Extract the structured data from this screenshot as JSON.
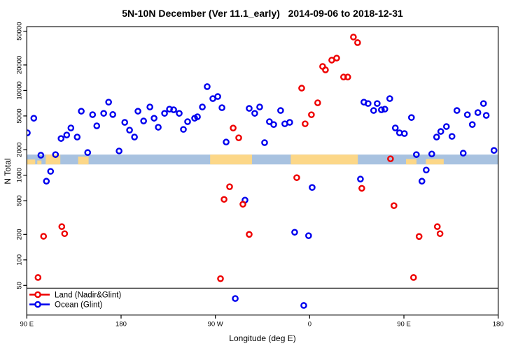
{
  "chart_data": {
    "type": "scatter",
    "title": "5N-10N December (Ver 11.1_early)   2014-09-06 to 2018-12-31",
    "xlabel": "Longitude (deg E)",
    "ylabel": "N Total",
    "x_axis": {
      "range_deg": [
        90,
        540
      ],
      "ticks": [
        {
          "deg": 90,
          "label": "90 E"
        },
        {
          "deg": 180,
          "label": "180"
        },
        {
          "deg": 270,
          "label": "90 W"
        },
        {
          "deg": 360,
          "label": "0"
        },
        {
          "deg": 450,
          "label": "90 E"
        },
        {
          "deg": 540,
          "label": "180"
        }
      ]
    },
    "y_axis": {
      "scale": "log10",
      "range": [
        22,
        57000
      ],
      "ticks": [
        50,
        100,
        200,
        500,
        1000,
        2000,
        5000,
        10000,
        20000,
        50000
      ]
    },
    "grid": "off",
    "legend": {
      "position": "bottom-left-inside",
      "separator_line": true
    },
    "map_strip": {
      "description": "world coastline band at 5N-10N drawn across plot",
      "n_top": 1750,
      "n_bottom": 1340,
      "ocean_color": "#a8c2e0",
      "land_color": "#fcd788",
      "land_patches_deg": [
        {
          "from": 90,
          "to": 98,
          "frac": 0.5
        },
        {
          "from": 100,
          "to": 104,
          "frac": 0.4
        },
        {
          "from": 108,
          "to": 122,
          "frac": 1
        },
        {
          "from": 139,
          "to": 149,
          "frac": 0.8
        },
        {
          "from": 265,
          "to": 305,
          "frac": 1
        },
        {
          "from": 342,
          "to": 406,
          "frac": 1
        },
        {
          "from": 452,
          "to": 462,
          "frac": 0.55
        },
        {
          "from": 471,
          "to": 488,
          "frac": 0.55
        }
      ]
    },
    "series": [
      {
        "name": "Land (Nadir&Glint)",
        "color": "#ee0000",
        "points": [
          [
            100.7,
            62
          ],
          [
            106,
            190
          ],
          [
            123.4,
            247
          ],
          [
            126.1,
            204
          ],
          [
            274.9,
            60
          ],
          [
            278.3,
            518
          ],
          [
            283.6,
            730
          ],
          [
            287,
            3600
          ],
          [
            292.3,
            2760
          ],
          [
            296.3,
            454
          ],
          [
            302.3,
            200
          ],
          [
            347.7,
            935
          ],
          [
            352.4,
            10650
          ],
          [
            355.7,
            4040
          ],
          [
            361.7,
            5170
          ],
          [
            367.7,
            7150
          ],
          [
            372.4,
            19200
          ],
          [
            375.1,
            17500
          ],
          [
            381.1,
            22800
          ],
          [
            385.8,
            24100
          ],
          [
            392.4,
            14400
          ],
          [
            396.4,
            14400
          ],
          [
            401.8,
            42700
          ],
          [
            405.8,
            36700
          ],
          [
            409.8,
            700
          ],
          [
            437.2,
            1560
          ],
          [
            440.5,
            437
          ],
          [
            459.2,
            62
          ],
          [
            464.5,
            189
          ],
          [
            481.9,
            247
          ],
          [
            484.5,
            204
          ]
        ]
      },
      {
        "name": "Ocean (Glint)",
        "color": "#0000ee",
        "points": [
          [
            90.5,
            3160
          ],
          [
            96.7,
            4700
          ],
          [
            103.4,
            1720
          ],
          [
            108.7,
            849
          ],
          [
            112.7,
            1110
          ],
          [
            117.4,
            1750
          ],
          [
            122.7,
            2710
          ],
          [
            128.1,
            2980
          ],
          [
            132.1,
            3610
          ],
          [
            138.1,
            2820
          ],
          [
            142,
            5690
          ],
          [
            148.1,
            1850
          ],
          [
            152.8,
            5180
          ],
          [
            156.8,
            3820
          ],
          [
            163.4,
            5370
          ],
          [
            168.1,
            7280
          ],
          [
            172.1,
            5200
          ],
          [
            178.1,
            1930
          ],
          [
            183.5,
            4200
          ],
          [
            188.1,
            3400
          ],
          [
            192.8,
            2820
          ],
          [
            196.1,
            5690
          ],
          [
            201.5,
            4360
          ],
          [
            207.5,
            6380
          ],
          [
            211.5,
            4700
          ],
          [
            215.5,
            3680
          ],
          [
            221.5,
            5370
          ],
          [
            226.2,
            6020
          ],
          [
            230.2,
            5910
          ],
          [
            235.5,
            5370
          ],
          [
            239.5,
            3470
          ],
          [
            243.5,
            4280
          ],
          [
            250.2,
            4700
          ],
          [
            252.9,
            4890
          ],
          [
            257.6,
            6380
          ],
          [
            262.2,
            11100
          ],
          [
            267.6,
            8010
          ],
          [
            272.3,
            8480
          ],
          [
            276.3,
            6260
          ],
          [
            280.3,
            2460
          ],
          [
            289,
            35
          ],
          [
            298.3,
            508
          ],
          [
            302.3,
            6140
          ],
          [
            307.6,
            5370
          ],
          [
            312.3,
            6380
          ],
          [
            317,
            2420
          ],
          [
            321.6,
            4280
          ],
          [
            325.7,
            3960
          ],
          [
            332.3,
            5800
          ],
          [
            336.3,
            4040
          ],
          [
            341,
            4200
          ],
          [
            345.7,
            212
          ],
          [
            354.4,
            29
          ],
          [
            359,
            193
          ],
          [
            362.4,
            716
          ],
          [
            408.5,
            899
          ],
          [
            411.8,
            7280
          ],
          [
            415.8,
            7010
          ],
          [
            421.1,
            5800
          ],
          [
            424.5,
            7010
          ],
          [
            428.5,
            5910
          ],
          [
            431.8,
            6020
          ],
          [
            436.5,
            8010
          ],
          [
            441.8,
            3610
          ],
          [
            445.8,
            3160
          ],
          [
            450.5,
            3100
          ],
          [
            457.2,
            4790
          ],
          [
            461.9,
            1750
          ],
          [
            467.2,
            849
          ],
          [
            471.3,
            1150
          ],
          [
            476.6,
            1780
          ],
          [
            481.2,
            2820
          ],
          [
            485.2,
            3280
          ],
          [
            490.6,
            3750
          ],
          [
            495.9,
            2870
          ],
          [
            500.6,
            5800
          ],
          [
            506.6,
            1820
          ],
          [
            510.6,
            5170
          ],
          [
            515.3,
            3960
          ],
          [
            520.6,
            5480
          ],
          [
            526,
            7010
          ],
          [
            528.6,
            5080
          ],
          [
            536,
            1960
          ]
        ]
      }
    ]
  }
}
